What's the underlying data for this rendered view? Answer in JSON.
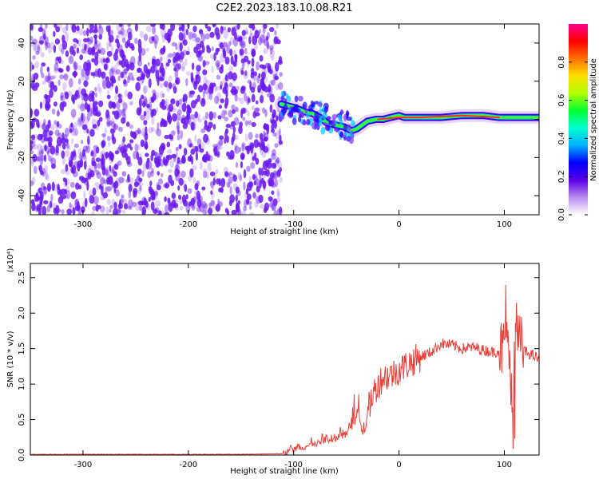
{
  "title": "C2E2.2023.183.10.08.R21",
  "colors": {
    "snr_line": "#e8403a",
    "points": "#6a18f0",
    "ridge": "#ff2d1e",
    "axis": "#000000"
  },
  "chart_data": [
    {
      "type": "heatmap",
      "name": "spectrogram",
      "xlabel": "Height of straight line (km)",
      "ylabel": "Frequency (Hz)",
      "xlim": [
        -350,
        133
      ],
      "ylim": [
        -50,
        50
      ],
      "xticks": [
        -300,
        -200,
        -100,
        0,
        100
      ],
      "yticks": [
        40,
        20,
        0,
        -20,
        -40
      ],
      "noise_region_x": [
        -350,
        -112
      ],
      "signal_ridge": {
        "x": [
          -112,
          -105,
          -98,
          -90,
          -82,
          -75,
          -68,
          -60,
          -52,
          -45,
          -40,
          -35,
          -30,
          -22,
          -15,
          -8,
          0,
          5,
          20,
          40,
          60,
          80,
          95,
          105,
          115,
          133
        ],
        "freq": [
          8,
          7,
          6,
          4,
          3,
          1,
          -2,
          -3,
          -4,
          -6,
          -5,
          -3,
          -1,
          0,
          0,
          1,
          2,
          1,
          1,
          1,
          2,
          2,
          1,
          1,
          1,
          1
        ]
      },
      "colorbar": {
        "label": "Normalized spectral amplitude",
        "range": [
          0.0,
          1.0
        ],
        "ticks": [
          "0.0",
          "0.2",
          "0.4",
          "0.6",
          "0.8"
        ],
        "stops": [
          "#ffffff",
          "#b98cf0",
          "#5a00e6",
          "#0000ff",
          "#00b0ff",
          "#00ffd0",
          "#00ff30",
          "#b0ff00",
          "#ffe000",
          "#ff7000",
          "#ff0000",
          "#ff0090"
        ]
      }
    },
    {
      "type": "line",
      "name": "snr",
      "xlabel": "Height of straight line (km)",
      "ylabel": "SNR (10 * v/v)",
      "multiplier": "(x10⁴)",
      "xlim": [
        -350,
        133
      ],
      "ylim": [
        0,
        2.7
      ],
      "xticks": [
        -300,
        -200,
        -100,
        0,
        100
      ],
      "yticks": [
        "0.0",
        "0.5",
        "1.0",
        "1.5",
        "2.0",
        "2.5"
      ],
      "series": [
        {
          "name": "SNR",
          "x": [
            -350,
            -300,
            -250,
            -200,
            -150,
            -110,
            -100,
            -90,
            -80,
            -70,
            -60,
            -50,
            -45,
            -40,
            -35,
            -30,
            -25,
            -20,
            -15,
            -10,
            -5,
            0,
            10,
            20,
            30,
            40,
            50,
            60,
            70,
            80,
            90,
            100,
            105,
            108,
            110,
            115,
            120,
            125,
            133
          ],
          "y": [
            0.01,
            0.01,
            0.01,
            0.01,
            0.01,
            0.02,
            0.08,
            0.12,
            0.15,
            0.18,
            0.22,
            0.3,
            0.45,
            0.55,
            0.3,
            0.6,
            0.85,
            1.0,
            1.1,
            1.12,
            1.15,
            1.2,
            1.3,
            1.38,
            1.45,
            1.57,
            1.55,
            1.5,
            1.52,
            1.48,
            1.45,
            1.5,
            1.6,
            0.2,
            1.8,
            1.55,
            1.45,
            1.42,
            1.35
          ]
        }
      ]
    }
  ]
}
